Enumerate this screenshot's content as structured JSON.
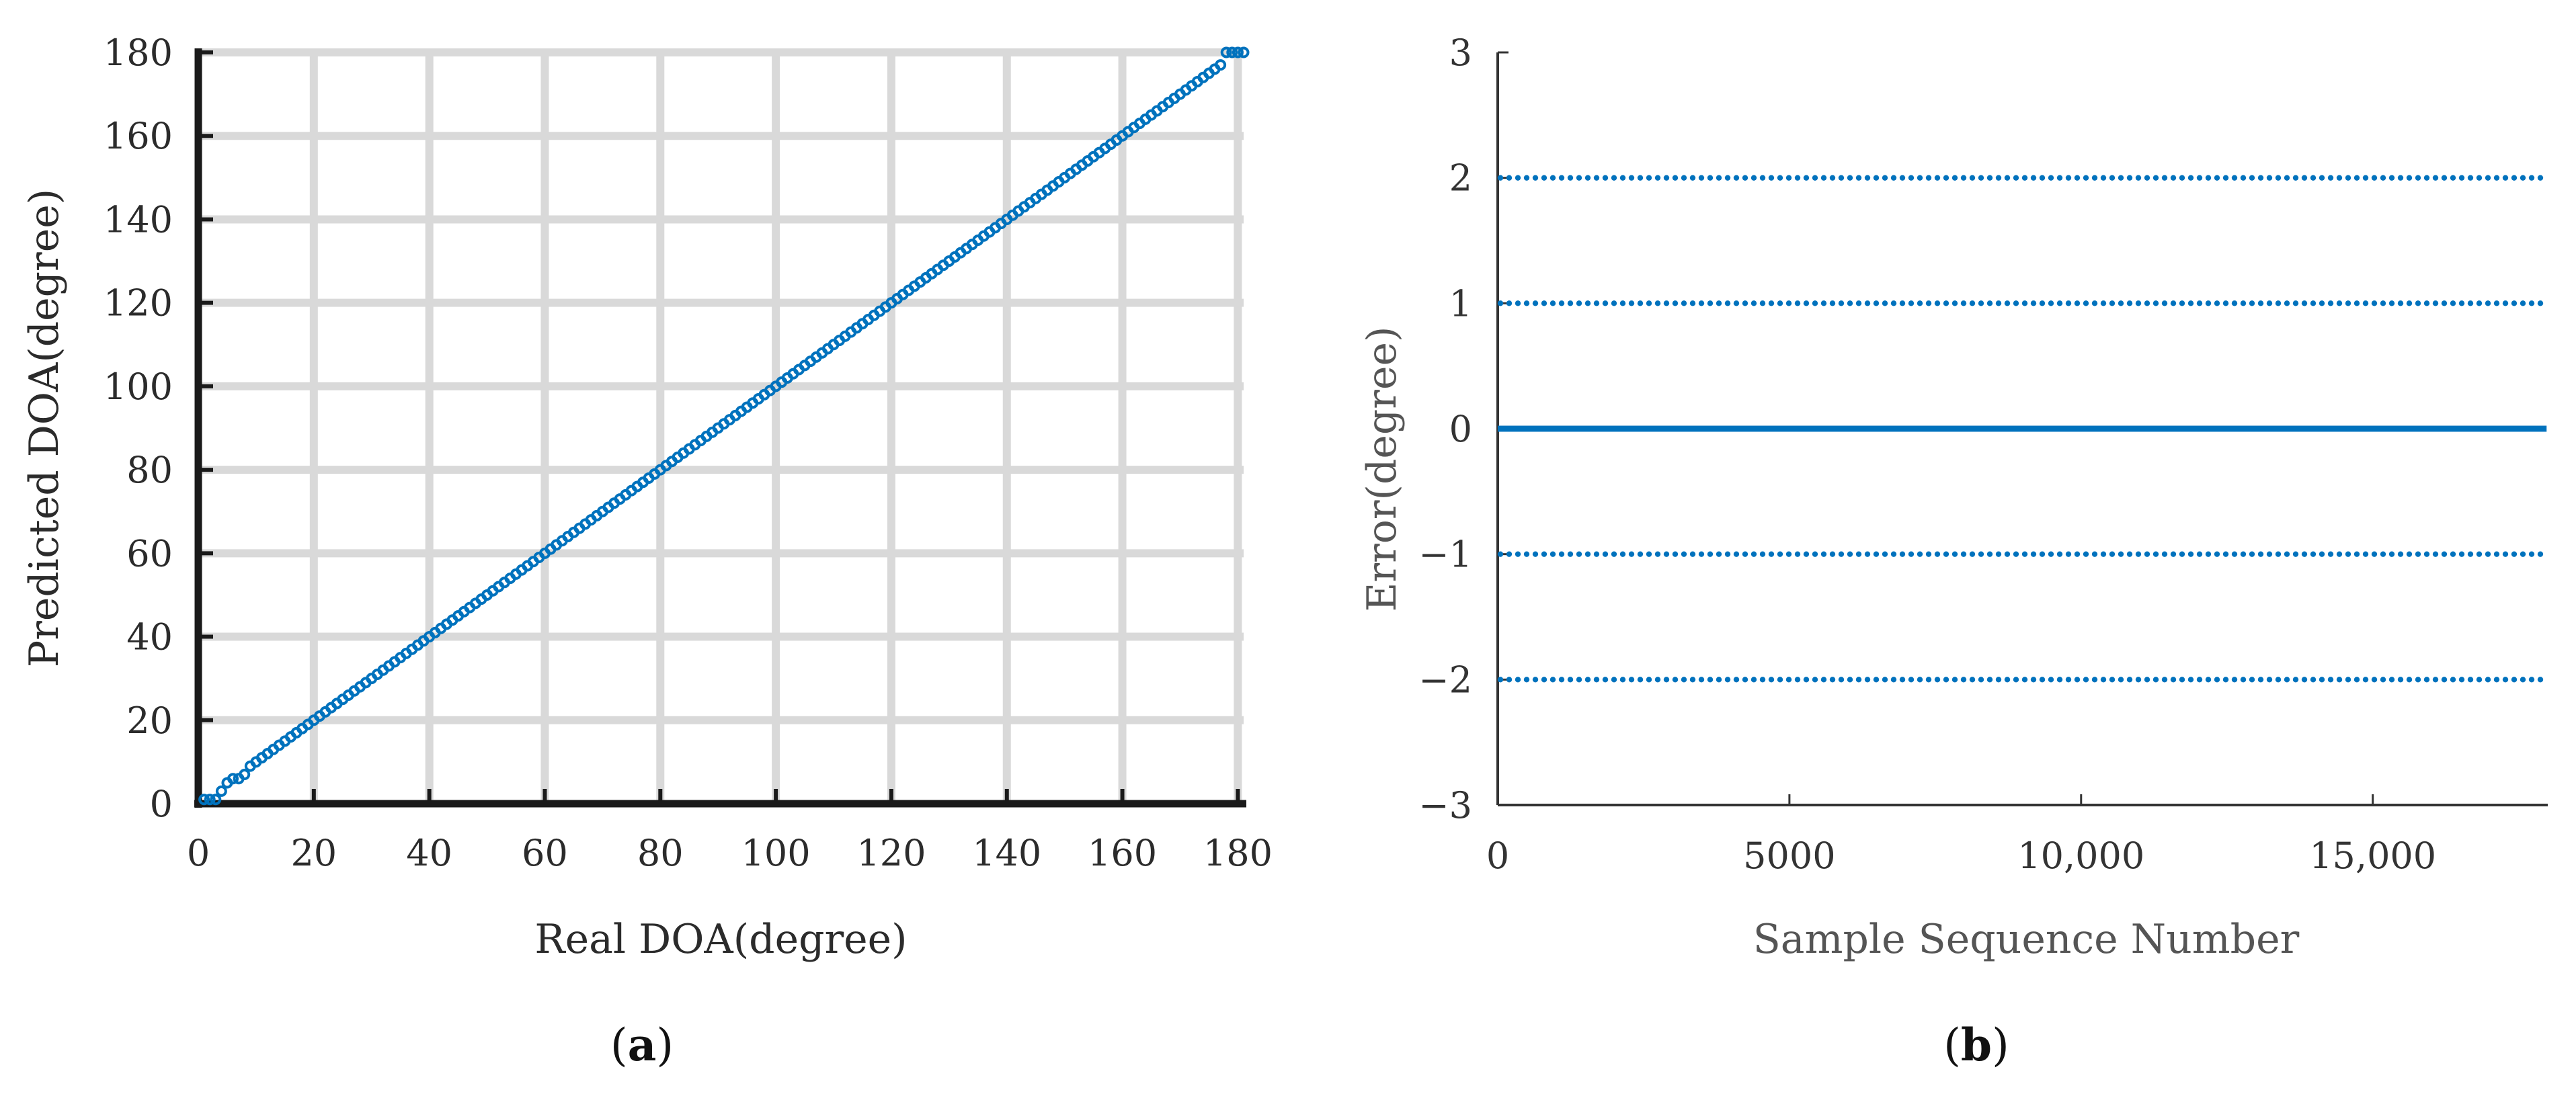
{
  "chart_data": [
    {
      "panel": "(a)",
      "panel_letter": "a",
      "type": "scatter",
      "title": "",
      "xlabel": "Real DOA(degree)",
      "ylabel": "Predicted DOA(degree)",
      "xlim": [
        0,
        181
      ],
      "ylim": [
        0,
        180
      ],
      "xticks": [
        0,
        20,
        40,
        60,
        80,
        100,
        120,
        140,
        160,
        180
      ],
      "yticks": [
        0,
        20,
        40,
        60,
        80,
        100,
        120,
        140,
        160,
        180
      ],
      "grid": true,
      "marker_color": "#0072BD",
      "series": [
        {
          "points_description_x_range": [
            1,
            180
          ],
          "points": [
            [
              1,
              1
            ],
            [
              2,
              1
            ],
            [
              3,
              1
            ],
            [
              4,
              3
            ],
            [
              5,
              5
            ],
            [
              6,
              6
            ],
            [
              7,
              6
            ],
            [
              8,
              7
            ],
            [
              9,
              9
            ],
            [
              10,
              10
            ],
            [
              176,
              176
            ],
            [
              177,
              177
            ],
            [
              178,
              180
            ],
            [
              179,
              180
            ],
            [
              180,
              180
            ],
            [
              181,
              180
            ]
          ],
          "linear_segment": {
            "x_start": 11,
            "x_end": 175,
            "slope": 1,
            "intercept": 0
          }
        }
      ]
    },
    {
      "panel": "(b)",
      "panel_letter": "b",
      "type": "scatter",
      "title": "",
      "xlabel": "Sample Sequence Number",
      "ylabel": "Error(degree)",
      "xlim": [
        0,
        18000
      ],
      "ylim": [
        -3,
        3
      ],
      "xticks": [
        0,
        5000,
        10000,
        15000
      ],
      "xtick_labels": [
        "0",
        "5000",
        "10,000",
        "15,000"
      ],
      "yticks": [
        -3,
        -2,
        -1,
        0,
        1,
        2,
        3
      ],
      "ytick_labels": [
        "−3",
        "−2",
        "−1",
        "0",
        "1",
        "2",
        "3"
      ],
      "grid": false,
      "marker_color": "#0072BD",
      "series": [
        {
          "error_levels": [
            {
              "y": 2,
              "x_range": [
                0,
                17980
              ]
            },
            {
              "y": 1,
              "x_range": [
                0,
                17980
              ]
            },
            {
              "y": 0,
              "x_range": [
                0,
                17980
              ]
            },
            {
              "y": -1,
              "x_range": [
                0,
                17980
              ]
            },
            {
              "y": -2,
              "x_range": [
                0,
                17900
              ]
            }
          ]
        }
      ]
    }
  ]
}
